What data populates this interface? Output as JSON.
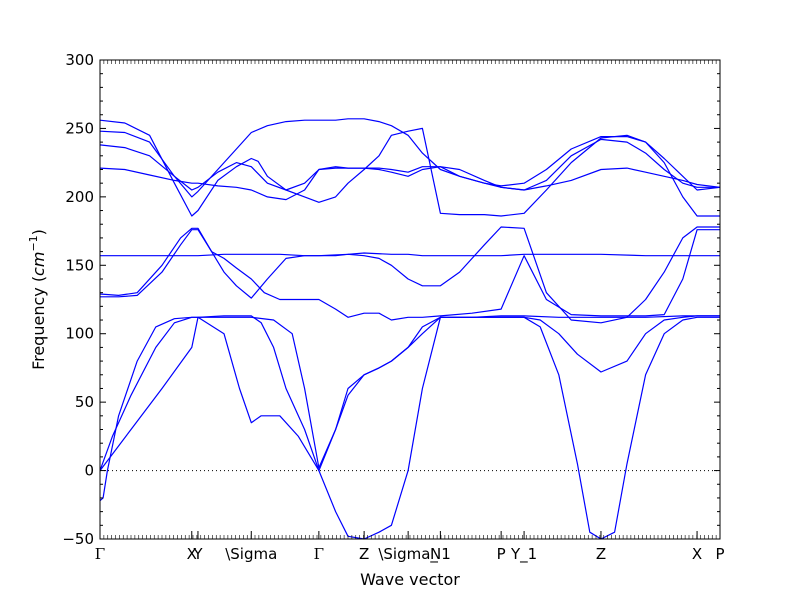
{
  "chart_data": {
    "type": "line",
    "title": "",
    "xlabel": "Wave vector",
    "ylabel": "Frequency ($cm^{-1}$)",
    "ylabel_parts": {
      "prefix": "Frequency (",
      "unit_base": "cm",
      "unit_exp": "−1",
      "suffix": ")"
    },
    "ylim": [
      -50,
      300
    ],
    "yticks": [
      -50,
      0,
      50,
      100,
      150,
      200,
      250,
      300
    ],
    "grid": false,
    "legend": "none",
    "line_color": "#0000ff",
    "zero_line": true,
    "xlim": [
      0,
      1
    ],
    "x_ticks": [
      {
        "label": "Γ",
        "pos": 0.0
      },
      {
        "label": "X",
        "pos": 0.148
      },
      {
        "label": "Y",
        "pos": 0.158
      },
      {
        "label": "\\Sigma",
        "pos": 0.244
      },
      {
        "label": "Γ",
        "pos": 0.353
      },
      {
        "label": "Z",
        "pos": 0.426
      },
      {
        "label": "\\Sigma_",
        "pos": 0.497
      },
      {
        "label": "N1",
        "pos": 0.549
      },
      {
        "label": "P",
        "pos": 0.647
      },
      {
        "label": "Y_1",
        "pos": 0.684
      },
      {
        "label": "Z",
        "pos": 0.808
      },
      {
        "label": "X",
        "pos": 0.963
      },
      {
        "label": "P",
        "pos": 1.0
      }
    ],
    "series": [
      {
        "x": [
          0,
          0.005,
          0.012,
          0.03,
          0.06,
          0.09,
          0.12,
          0.148,
          0.158,
          0.2,
          0.244,
          0.28,
          0.31,
          0.33,
          0.353,
          0.38,
          0.4,
          0.426,
          0.45,
          0.47,
          0.497,
          0.52,
          0.549,
          0.6,
          0.647,
          0.684,
          0.71,
          0.74,
          0.77,
          0.79,
          0.808,
          0.83,
          0.85,
          0.88,
          0.91,
          0.94,
          0.963,
          1.0
        ],
        "y": [
          -22,
          -20,
          0,
          40,
          80,
          105,
          111,
          112,
          112,
          112,
          112,
          110,
          100,
          60,
          2,
          30,
          60,
          70,
          75,
          80,
          90,
          100,
          112,
          112,
          112,
          112,
          105,
          70,
          5,
          -45,
          -50,
          -45,
          5,
          70,
          100,
          110,
          112,
          112
        ]
      },
      {
        "x": [
          0,
          0.02,
          0.05,
          0.09,
          0.12,
          0.148,
          0.158,
          0.2,
          0.225,
          0.244,
          0.26,
          0.29,
          0.32,
          0.353,
          0.38,
          0.4,
          0.426,
          0.45,
          0.47,
          0.497,
          0.52,
          0.549,
          0.6,
          0.647,
          0.684,
          0.71,
          0.74,
          0.77,
          0.808,
          0.85,
          0.88,
          0.91,
          0.94,
          0.963,
          1.0
        ],
        "y": [
          0,
          25,
          55,
          90,
          108,
          112,
          112,
          100,
          60,
          35,
          40,
          40,
          25,
          0,
          30,
          55,
          70,
          75,
          80,
          90,
          105,
          112,
          112,
          112,
          112,
          110,
          100,
          85,
          72,
          80,
          100,
          110,
          112,
          113,
          113
        ]
      },
      {
        "x": [
          0,
          0.03,
          0.06,
          0.1,
          0.13,
          0.148,
          0.158,
          0.18,
          0.2,
          0.22,
          0.244,
          0.27,
          0.3,
          0.33,
          0.353,
          0.38,
          0.4,
          0.426,
          0.45,
          0.47,
          0.497,
          0.52,
          0.549,
          0.58,
          0.62,
          0.647,
          0.684,
          0.72,
          0.76,
          0.808,
          0.85,
          0.88,
          0.91,
          0.94,
          0.963,
          1.0
        ],
        "y": [
          129,
          128,
          130,
          150,
          170,
          177,
          177,
          160,
          145,
          135,
          126,
          140,
          155,
          157,
          157,
          157,
          158,
          157,
          155,
          150,
          140,
          135,
          135,
          145,
          165,
          178,
          177,
          130,
          110,
          108,
          112,
          125,
          145,
          170,
          178,
          178
        ]
      },
      {
        "x": [
          0,
          0.03,
          0.06,
          0.1,
          0.13,
          0.148,
          0.158,
          0.18,
          0.2,
          0.22,
          0.244,
          0.265,
          0.29,
          0.32,
          0.353,
          0.38,
          0.4,
          0.426,
          0.45,
          0.47,
          0.497,
          0.52,
          0.549,
          0.6,
          0.647,
          0.684,
          0.72,
          0.76,
          0.808,
          0.85,
          0.88,
          0.91,
          0.94,
          0.963,
          1.0
        ],
        "y": [
          127,
          127,
          128,
          145,
          165,
          176,
          176,
          160,
          155,
          148,
          140,
          130,
          125,
          125,
          125,
          118,
          112,
          115,
          115,
          110,
          112,
          112,
          113,
          115,
          118,
          157,
          125,
          114,
          113,
          113,
          113,
          114,
          140,
          176,
          176
        ]
      },
      {
        "x": [
          0,
          0.05,
          0.1,
          0.148,
          0.158,
          0.2,
          0.244,
          0.29,
          0.33,
          0.353,
          0.4,
          0.426,
          0.47,
          0.497,
          0.52,
          0.549,
          0.6,
          0.647,
          0.684,
          0.74,
          0.808,
          0.88,
          0.963,
          1.0
        ],
        "y": [
          157,
          157,
          157,
          157,
          157,
          158,
          158,
          158,
          157,
          157,
          158,
          159,
          158,
          158,
          157,
          157,
          157,
          157,
          158,
          158,
          158,
          157,
          157,
          157
        ]
      },
      {
        "x": [
          0,
          0.04,
          0.08,
          0.12,
          0.148,
          0.158,
          0.19,
          0.22,
          0.244,
          0.255,
          0.27,
          0.3,
          0.33,
          0.353,
          0.38,
          0.4,
          0.426,
          0.45,
          0.47,
          0.497,
          0.52,
          0.549,
          0.58,
          0.62,
          0.647,
          0.684,
          0.72,
          0.76,
          0.808,
          0.85,
          0.88,
          0.91,
          0.94,
          0.963,
          1.0
        ],
        "y": [
          256,
          254,
          245,
          210,
          186,
          190,
          212,
          222,
          228,
          226,
          215,
          205,
          200,
          196,
          200,
          210,
          220,
          230,
          245,
          248,
          250,
          188,
          187,
          187,
          186,
          188,
          205,
          225,
          243,
          245,
          240,
          225,
          200,
          186,
          186
        ]
      },
      {
        "x": [
          0,
          0.04,
          0.08,
          0.12,
          0.148,
          0.158,
          0.19,
          0.22,
          0.244,
          0.27,
          0.3,
          0.33,
          0.353,
          0.38,
          0.4,
          0.426,
          0.45,
          0.47,
          0.497,
          0.52,
          0.549,
          0.58,
          0.62,
          0.647,
          0.684,
          0.72,
          0.76,
          0.808,
          0.85,
          0.88,
          0.91,
          0.94,
          0.963,
          1.0
        ],
        "y": [
          248,
          247,
          240,
          215,
          200,
          204,
          220,
          235,
          247,
          252,
          255,
          256,
          256,
          256,
          257,
          257,
          255,
          252,
          245,
          232,
          220,
          215,
          210,
          208,
          210,
          220,
          235,
          244,
          244,
          240,
          228,
          215,
          205,
          207
        ]
      },
      {
        "x": [
          0,
          0.04,
          0.08,
          0.12,
          0.148,
          0.158,
          0.19,
          0.22,
          0.244,
          0.27,
          0.3,
          0.33,
          0.353,
          0.38,
          0.4,
          0.426,
          0.45,
          0.47,
          0.497,
          0.52,
          0.549,
          0.58,
          0.62,
          0.647,
          0.684,
          0.72,
          0.76,
          0.808,
          0.85,
          0.88,
          0.91,
          0.94,
          0.963,
          1.0
        ],
        "y": [
          238,
          236,
          230,
          215,
          205,
          207,
          218,
          225,
          222,
          210,
          205,
          210,
          220,
          222,
          221,
          221,
          220,
          218,
          215,
          220,
          222,
          220,
          212,
          207,
          205,
          212,
          230,
          242,
          240,
          232,
          220,
          210,
          207,
          207
        ]
      },
      {
        "x": [
          0,
          0.04,
          0.08,
          0.12,
          0.148,
          0.158,
          0.19,
          0.22,
          0.244,
          0.27,
          0.3,
          0.33,
          0.353,
          0.38,
          0.4,
          0.426,
          0.45,
          0.47,
          0.497,
          0.52,
          0.549,
          0.58,
          0.62,
          0.647,
          0.684,
          0.72,
          0.76,
          0.808,
          0.85,
          0.88,
          0.91,
          0.94,
          0.963,
          1.0
        ],
        "y": [
          221,
          220,
          216,
          212,
          210,
          210,
          208,
          207,
          205,
          200,
          198,
          205,
          220,
          221,
          221,
          221,
          221,
          220,
          218,
          222,
          222,
          215,
          210,
          207,
          205,
          208,
          212,
          220,
          221,
          218,
          215,
          212,
          209,
          207
        ]
      },
      {
        "x": [
          0,
          0.05,
          0.1,
          0.148,
          0.158,
          0.2,
          0.244,
          0.26,
          0.28,
          0.3,
          0.33,
          0.353,
          0.38,
          0.4,
          0.426,
          0.45,
          0.47,
          0.497,
          0.52,
          0.549,
          0.6,
          0.647,
          0.684,
          0.74,
          0.808,
          0.88,
          0.94,
          0.963,
          1.0
        ],
        "y": [
          0,
          30,
          60,
          90,
          112,
          113,
          113,
          108,
          90,
          60,
          30,
          0,
          -30,
          -48,
          -50,
          -45,
          -40,
          0,
          60,
          112,
          112,
          113,
          113,
          112,
          112,
          112,
          113,
          113,
          113
        ]
      }
    ]
  }
}
